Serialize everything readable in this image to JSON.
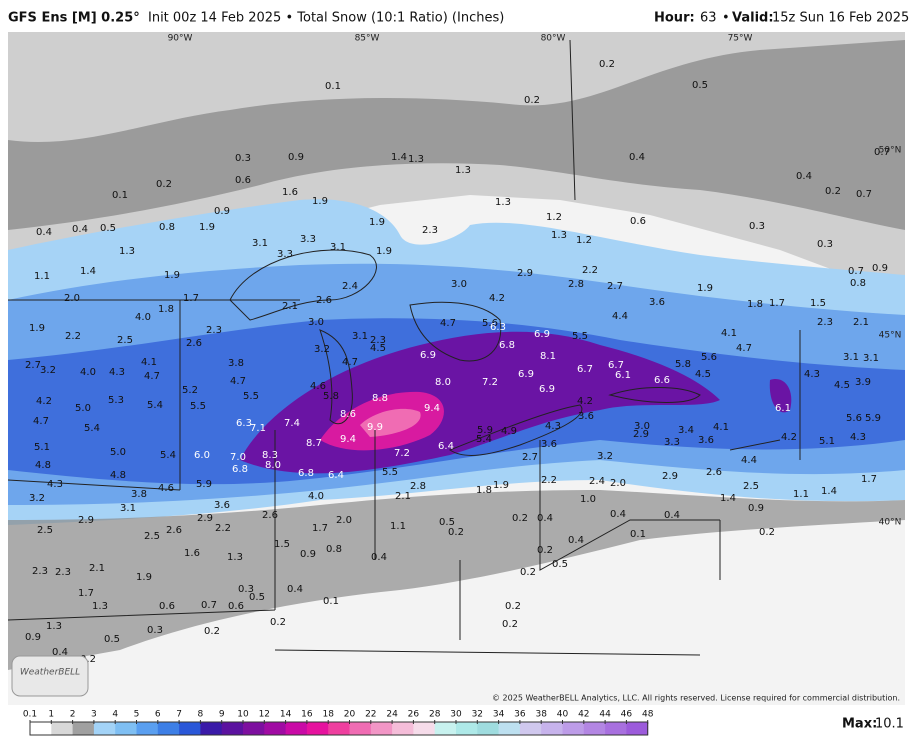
{
  "header": {
    "model": "GFS Ens [M] 0.25°",
    "info": "Init 00z 14 Feb 2025 • Total Snow (10:1 Ratio) (Inches)",
    "hour_label": "Hour:",
    "hour": "63",
    "separator": "•",
    "valid_label": "Valid:",
    "valid": "15z Sun 16 Feb 2025"
  },
  "graticule": {
    "lon": [
      "90°W",
      "85°W",
      "80°W",
      "75°W"
    ],
    "lat": [
      "50°N",
      "45°N",
      "40°N"
    ]
  },
  "map_labels": [
    "0.1",
    "0.2",
    "0.2",
    "0.5",
    "0.4",
    "0.7",
    "0.4",
    "0.2",
    "0.7",
    "0.6",
    "0.3",
    "0.3",
    "0.7",
    "0.9",
    "0.8",
    "0.3",
    "0.9",
    "1.4",
    "1.3",
    "1.3",
    "1.3",
    "1.2",
    "1.3",
    "1.2",
    "0.6",
    "0.2",
    "0.1",
    "1.6",
    "1.9",
    "0.9",
    "0.4",
    "0.4",
    "0.5",
    "0.8",
    "1.9",
    "1.9",
    "2.3",
    "3.1",
    "3.3",
    "3.1",
    "3.3",
    "1.9",
    "1.3",
    "1.1",
    "1.4",
    "1.9",
    "2.9",
    "2.8",
    "2.2",
    "2.7",
    "1.9",
    "3.0",
    "2.4",
    "2.6",
    "2.1",
    "3.0",
    "4.2",
    "3.6",
    "1.8",
    "1.7",
    "1.5",
    "2.0",
    "1.8",
    "1.7",
    "4.0",
    "2.3",
    "2.6",
    "4.7",
    "5.6",
    "6.3",
    "6.9",
    "5.5",
    "4.4",
    "2.3",
    "2.1",
    "4.1",
    "4.7",
    "1.9",
    "2.2",
    "2.5",
    "3.2",
    "3.1",
    "2.3",
    "4.5",
    "6.9",
    "6.8",
    "8.1",
    "5.6",
    "5.8",
    "3.1",
    "3.1",
    "4.1",
    "4.7",
    "2.7",
    "3.2",
    "4.0",
    "4.3",
    "3.8",
    "4.7",
    "4.7",
    "6.9",
    "6.7",
    "6.7",
    "6.1",
    "6.6",
    "4.5",
    "4.3",
    "4.5",
    "3.9",
    "5.2",
    "4.6",
    "5.8",
    "8.0",
    "7.2",
    "6.9",
    "5.5",
    "4.2",
    "5.0",
    "5.3",
    "5.4",
    "5.5",
    "8.8",
    "9.4",
    "6.1",
    "4.2",
    "3.6",
    "4.7",
    "5.4",
    "6.3",
    "7.1",
    "7.4",
    "8.6",
    "9.9",
    "5.6",
    "5.9",
    "3.0",
    "2.9",
    "4.3",
    "4.9",
    "5.9",
    "5.4",
    "3.4",
    "4.1",
    "3.6",
    "3.3",
    "4.2",
    "5.1",
    "4.3",
    "8.7",
    "9.4",
    "6.4",
    "3.6",
    "5.1",
    "5.0",
    "5.4",
    "6.0",
    "7.0",
    "8.3",
    "7.2",
    "2.7",
    "3.2",
    "4.4",
    "4.8",
    "4.8",
    "6.8",
    "8.0",
    "6.8",
    "6.4",
    "5.5",
    "2.9",
    "2.6",
    "2.2",
    "2.4",
    "2.0",
    "2.8",
    "1.8",
    "1.9",
    "4.3",
    "4.6",
    "5.9",
    "3.8",
    "2.5",
    "1.4",
    "2.1",
    "4.0",
    "1.0",
    "1.1",
    "1.4",
    "1.7",
    "3.2",
    "3.1",
    "3.6",
    "0.9",
    "0.2",
    "0.4",
    "0.4",
    "0.4",
    "2.9",
    "2.0",
    "2.6",
    "0.5",
    "2.5",
    "2.5",
    "2.6",
    "2.9",
    "2.2",
    "1.7",
    "1.1",
    "0.2",
    "0.4",
    "0.1",
    "0.2",
    "1.5",
    "0.9",
    "0.8",
    "0.4",
    "0.2",
    "0.5",
    "0.2",
    "1.6",
    "1.3",
    "2.1",
    "2.3",
    "2.3",
    "1.9",
    "0.4",
    "1.7",
    "1.3",
    "0.6",
    "0.7",
    "0.6",
    "0.5",
    "0.3",
    "0.1",
    "0.2",
    "0.3",
    "0.2",
    "0.2",
    "0.2",
    "1.3",
    "0.9",
    "0.5",
    "0.2",
    "0.4"
  ],
  "copyright": "© 2025 WeatherBELL Analytics, LLC. All rights reserved. License required for commercial distribution.",
  "logo": "WeatherBELL",
  "colorbar": {
    "ticks": [
      0.1,
      1,
      2,
      3,
      4,
      5,
      6,
      7,
      8,
      9,
      10,
      12,
      14,
      16,
      18,
      20,
      22,
      24,
      26,
      28,
      30,
      32,
      34,
      36,
      38,
      40,
      42,
      44,
      46,
      48
    ],
    "colors": [
      "#ffffff",
      "#d8d8d8",
      "#a0a0a0",
      "#a3d3f7",
      "#7fbff3",
      "#5a9ff0",
      "#3d7fe6",
      "#2a57d8",
      "#3a1aa8",
      "#5b129f",
      "#7d0f9f",
      "#a00ba3",
      "#c90aa6",
      "#e6129e",
      "#ef3f9f",
      "#f06cb3",
      "#f296c6",
      "#f5bdd9",
      "#f6dcea",
      "#c8f2ef",
      "#aee9e8",
      "#9fdcdf",
      "#bde0f0",
      "#d0c8ee",
      "#c7b3ec",
      "#bd9ce8",
      "#b386e3",
      "#a870df",
      "#9c5bdb"
    ]
  },
  "max_label": "Max:",
  "max": 10.1
}
